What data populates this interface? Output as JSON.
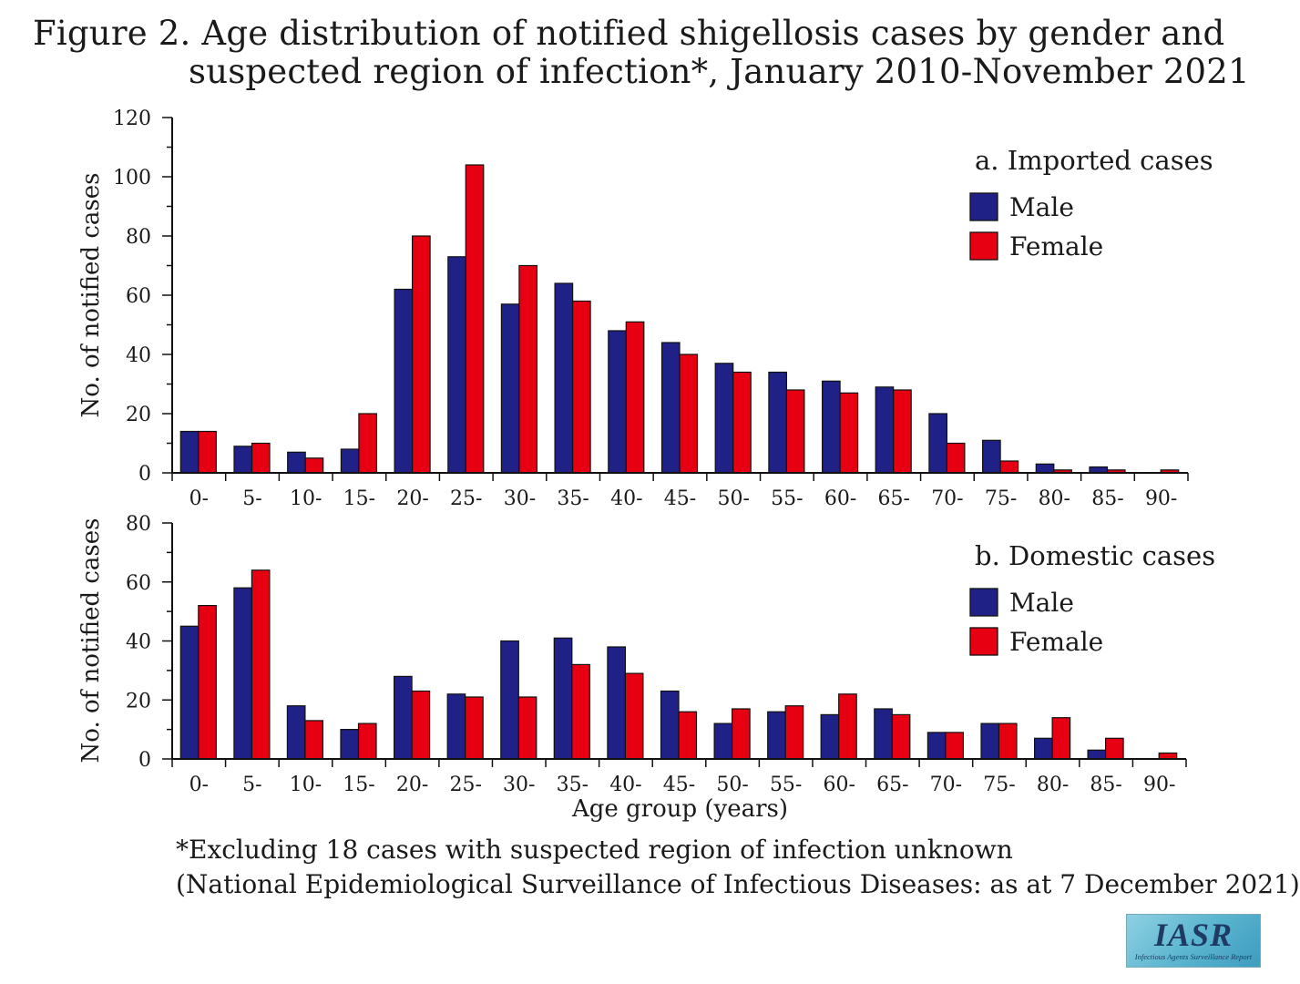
{
  "title_line1": "Figure 2. Age distribution of notified shigellosis cases by gender and",
  "title_line2": "suspected region of infection*, January 2010-November 2021",
  "footnote1": "*Excluding 18 cases with suspected region of infection unknown",
  "footnote2": "(National Epidemiological Surveillance of Infectious Diseases: as at 7 December 2021)",
  "logo": {
    "main": "IASR",
    "sub": "Infectious Agents Surveillance Report"
  },
  "colors": {
    "male": "#1f2187",
    "female": "#e60012"
  },
  "chart_data": [
    {
      "type": "bar",
      "title": "a. Imported cases",
      "ylabel": "No. of notified cases",
      "xlabel": "",
      "ylim": [
        0,
        120
      ],
      "yticks": [
        0,
        20,
        40,
        60,
        80,
        100,
        120
      ],
      "legend": "top-right",
      "categories": [
        "0-",
        "5-",
        "10-",
        "15-",
        "20-",
        "25-",
        "30-",
        "35-",
        "40-",
        "45-",
        "50-",
        "55-",
        "60-",
        "65-",
        "70-",
        "75-",
        "80-",
        "85-",
        "90-"
      ],
      "series": [
        {
          "name": "Male",
          "color": "#1f2187",
          "values": [
            14,
            9,
            7,
            8,
            62,
            73,
            57,
            64,
            48,
            44,
            37,
            34,
            31,
            29,
            20,
            11,
            3,
            2,
            0
          ]
        },
        {
          "name": "Female",
          "color": "#e60012",
          "values": [
            14,
            10,
            5,
            20,
            80,
            104,
            70,
            58,
            51,
            40,
            34,
            28,
            27,
            28,
            10,
            4,
            1,
            1,
            1
          ]
        }
      ]
    },
    {
      "type": "bar",
      "title": "b. Domestic cases",
      "ylabel": "No. of notified cases",
      "xlabel": "Age group (years)",
      "ylim": [
        0,
        80
      ],
      "yticks": [
        0,
        20,
        40,
        60,
        80
      ],
      "legend": "top-right",
      "categories": [
        "0-",
        "5-",
        "10-",
        "15-",
        "20-",
        "25-",
        "30-",
        "35-",
        "40-",
        "45-",
        "50-",
        "55-",
        "60-",
        "65-",
        "70-",
        "75-",
        "80-",
        "85-",
        "90-"
      ],
      "series": [
        {
          "name": "Male",
          "color": "#1f2187",
          "values": [
            45,
            58,
            18,
            10,
            28,
            22,
            40,
            41,
            38,
            23,
            12,
            16,
            15,
            17,
            9,
            12,
            7,
            3,
            0
          ]
        },
        {
          "name": "Female",
          "color": "#e60012",
          "values": [
            52,
            64,
            13,
            12,
            23,
            21,
            21,
            32,
            29,
            16,
            17,
            18,
            22,
            15,
            9,
            12,
            14,
            7,
            2
          ]
        }
      ]
    }
  ]
}
